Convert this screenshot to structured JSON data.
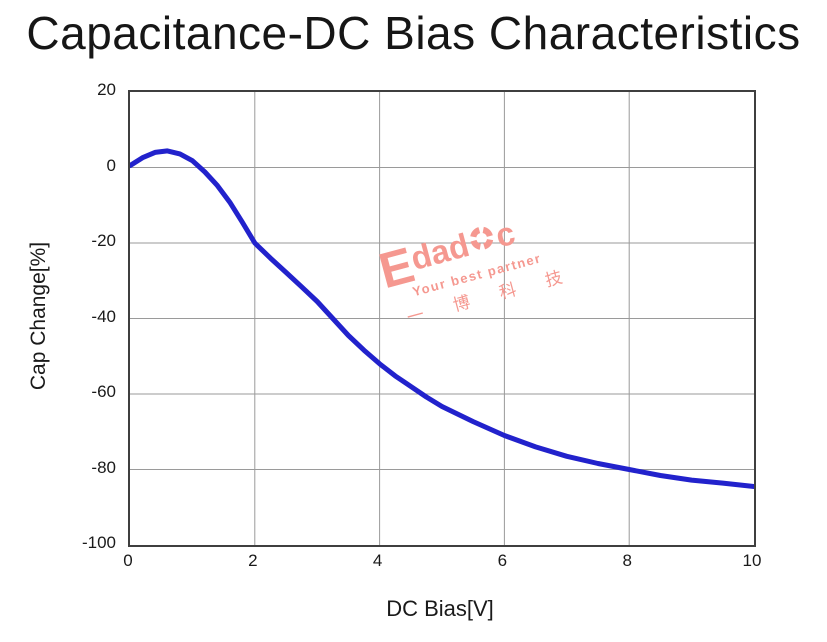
{
  "title": "Capacitance-DC Bias Characteristics",
  "chart_data": {
    "type": "line",
    "title": "Capacitance-DC Bias Characteristics",
    "xlabel": "DC Bias[V]",
    "ylabel": "Cap Change[%]",
    "xlim": [
      0,
      10
    ],
    "ylim": [
      -100,
      20
    ],
    "xticks": [
      0,
      2,
      4,
      6,
      8,
      10
    ],
    "yticks": [
      20,
      0,
      -20,
      -40,
      -60,
      -80,
      -100
    ],
    "grid": true,
    "legend_position": "none",
    "series": [
      {
        "name": "Cap Change",
        "color": "#2222cc",
        "line_width": 5,
        "x": [
          0,
          0.2,
          0.4,
          0.6,
          0.8,
          1.0,
          1.2,
          1.4,
          1.6,
          1.8,
          2.0,
          2.25,
          2.5,
          2.75,
          3.0,
          3.25,
          3.5,
          3.75,
          4.0,
          4.25,
          4.5,
          4.75,
          5.0,
          5.5,
          6.0,
          6.5,
          7.0,
          7.5,
          8.0,
          8.5,
          9.0,
          9.5,
          10.0
        ],
        "y": [
          0.5,
          2.6,
          4.0,
          4.4,
          3.6,
          1.8,
          -1.2,
          -4.8,
          -9.2,
          -14.5,
          -20.0,
          -24.0,
          -27.8,
          -31.6,
          -35.5,
          -40.0,
          -44.5,
          -48.4,
          -52.0,
          -55.2,
          -58.0,
          -60.8,
          -63.3,
          -67.3,
          -71.0,
          -74.0,
          -76.5,
          -78.4,
          -80.0,
          -81.6,
          -82.8,
          -83.6,
          -84.5
        ]
      }
    ],
    "colors": {
      "curve": "#2222cc",
      "gridline": "#9a9a9a",
      "plot_border": "#3f3f3f",
      "text": "#1a1a1a"
    }
  },
  "watermark": {
    "brand_initial": "E",
    "brand_rest1": "dad",
    "brand_rest2": "c",
    "tagline": "Your best partner",
    "company": "一 博 科 技",
    "color": "#f59890"
  }
}
